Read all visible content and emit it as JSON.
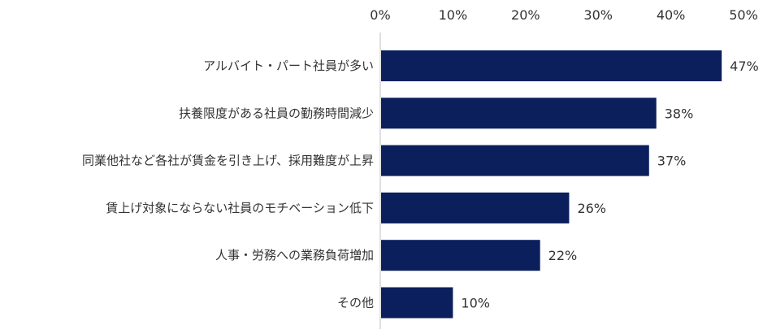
{
  "chart_data": {
    "type": "bar",
    "orientation": "horizontal",
    "categories": [
      "アルバイト・パート社員が多い",
      "扶養限度がある社員の勤務時間減少",
      "同業他社など各社が賃金を引き上げ、採用難度が上昇",
      "賃上げ対象にならない社員のモチベーション低下",
      "人事・労務への業務負荷増加",
      "その他"
    ],
    "values": [
      47,
      38,
      37,
      26,
      22,
      10
    ],
    "data_labels": [
      "47%",
      "38%",
      "37%",
      "26%",
      "22%",
      "10%"
    ],
    "xlim": [
      0,
      50
    ],
    "x_ticks": [
      "0%",
      "10%",
      "20%",
      "30%",
      "40%",
      "50%"
    ],
    "x_axis_position": "top",
    "grid": false,
    "legend": "none",
    "bar_color": "#0b1f5c",
    "axis_color": "#bfbfbf"
  }
}
